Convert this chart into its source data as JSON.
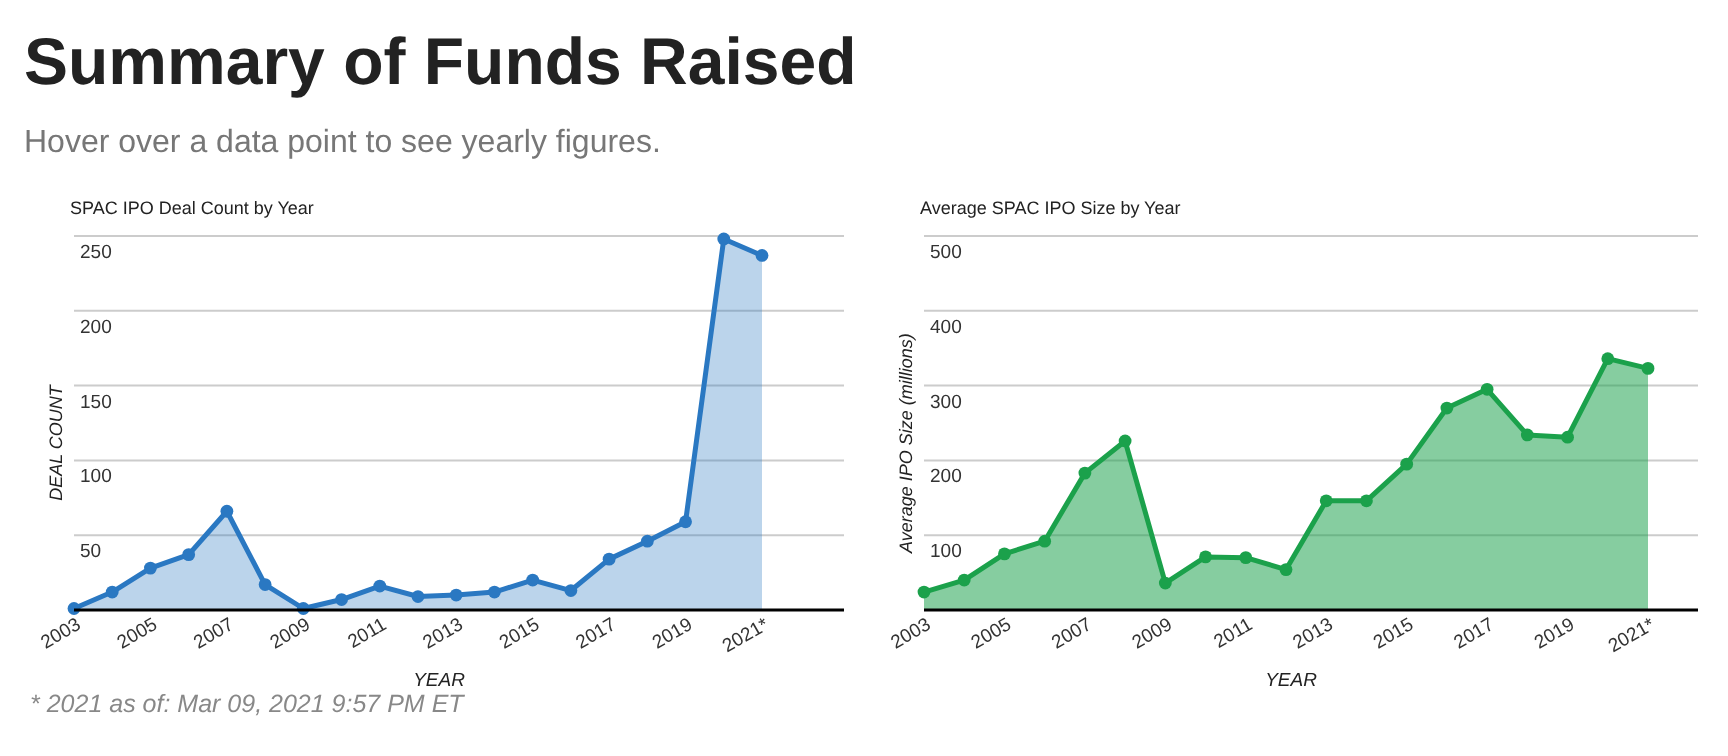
{
  "chart_data": [
    {
      "type": "other",
      "title": "Summary of Funds Raised",
      "subtitle": "Hover over a data point to see yearly figures."
    },
    {
      "type": "area",
      "title": "SPAC IPO Deal Count by Year",
      "xlabel": "YEAR",
      "ylabel": "DEAL COUNT",
      "categories": [
        "2003",
        null,
        "2005",
        null,
        "2007",
        null,
        "2009",
        null,
        "2011",
        null,
        "2013",
        null,
        "2015",
        null,
        "2017",
        null,
        "2019",
        null,
        "2021*"
      ],
      "series": [
        {
          "color": "#2a78c2",
          "values": [
            1,
            12,
            28,
            37,
            66,
            17,
            1,
            7,
            16,
            9,
            10,
            12,
            20,
            13,
            34,
            46,
            59,
            248,
            237
          ]
        }
      ],
      "ylim": [
        0,
        250
      ],
      "yticks": [
        50,
        100,
        150,
        200,
        250
      ],
      "grid": "y",
      "marker": "circle",
      "annotations": [
        "*  2021 as of: Mar 09, 2021 9:57 PM ET"
      ]
    },
    {
      "type": "area",
      "title": "Average SPAC IPO Size by Year",
      "xlabel": "YEAR",
      "ylabel": "Average IPO Size (millions)",
      "categories": [
        "2003",
        null,
        "2005",
        null,
        "2007",
        null,
        "2009",
        null,
        "2011",
        null,
        "2013",
        null,
        "2015",
        null,
        "2017",
        null,
        "2019",
        null,
        "2021*"
      ],
      "series": [
        {
          "color": "#1ba14b",
          "values": [
            24,
            40,
            75,
            92,
            183,
            226,
            36,
            71,
            70,
            54,
            146,
            146,
            195,
            270,
            295,
            234,
            231,
            336,
            323
          ]
        }
      ],
      "ylim": [
        0,
        500
      ],
      "yticks": [
        100,
        200,
        300,
        400,
        500
      ],
      "grid": "y",
      "marker": "circle"
    }
  ]
}
